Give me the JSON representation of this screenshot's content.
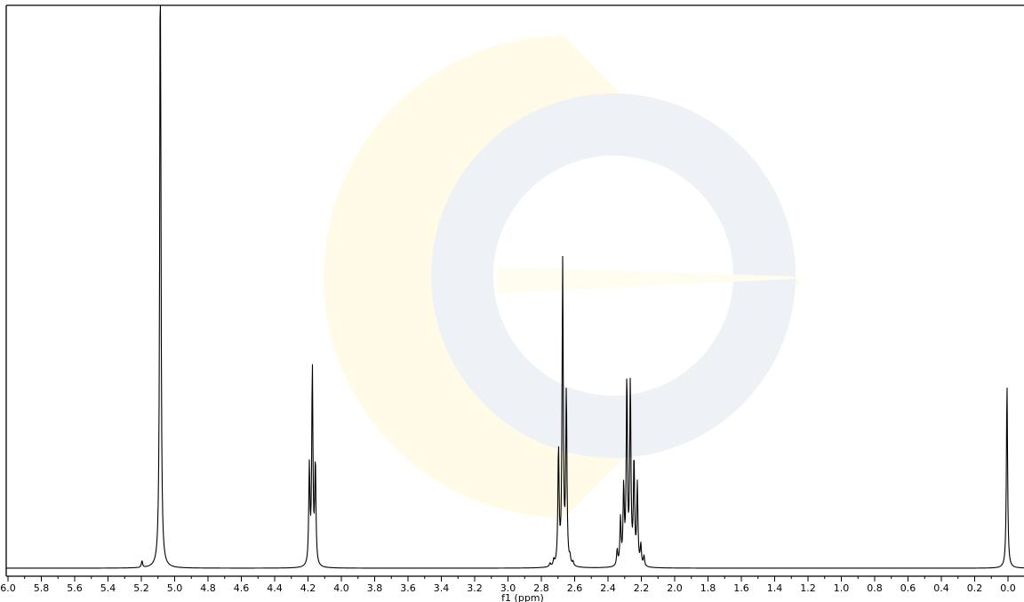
{
  "chart_data": {
    "type": "line",
    "title": "",
    "xlabel": "f1 (ppm)",
    "ylabel": "",
    "xlim": [
      6.1,
      -0.05
    ],
    "x_reversed": true,
    "grid": false,
    "x_ticks": [
      6.0,
      5.8,
      5.6,
      5.4,
      5.2,
      5.0,
      4.8,
      4.6,
      4.4,
      4.2,
      4.0,
      3.8,
      3.6,
      3.4,
      3.2,
      3.0,
      2.8,
      2.6,
      2.4,
      2.2,
      2.0,
      1.8,
      1.6,
      1.4,
      1.2,
      1.0,
      0.8,
      0.6,
      0.4,
      0.2,
      0.0
    ],
    "x_tick_labels": [
      "6.0",
      "5.8",
      "5.6",
      "5.4",
      "5.2",
      "5.0",
      "4.8",
      "4.6",
      "4.4",
      "4.2",
      "4.0",
      "3.8",
      "3.6",
      "3.4",
      "3.2",
      "3.0",
      "2.8",
      "2.6",
      "2.4",
      "2.2",
      "2.0",
      "1.8",
      "1.6",
      "1.4",
      "1.2",
      "1.0",
      "0.8",
      "0.6",
      "0.4",
      "0.2",
      "0.0"
    ],
    "peak_width_ppm": 0.0042,
    "peaks": [
      {
        "x": 5.086,
        "y": 1.2
      },
      {
        "x": 5.196,
        "y": 0.012
      },
      {
        "x": 4.192,
        "y": 0.172
      },
      {
        "x": 4.174,
        "y": 0.352
      },
      {
        "x": 4.156,
        "y": 0.182
      },
      {
        "x": 2.748,
        "y": 0.006
      },
      {
        "x": 2.725,
        "y": 0.01
      },
      {
        "x": 2.697,
        "y": 0.208
      },
      {
        "x": 2.672,
        "y": 0.537
      },
      {
        "x": 2.65,
        "y": 0.305
      },
      {
        "x": 2.628,
        "y": 0.012
      },
      {
        "x": 2.61,
        "y": 0.007
      },
      {
        "x": 2.345,
        "y": 0.028
      },
      {
        "x": 2.325,
        "y": 0.082
      },
      {
        "x": 2.306,
        "y": 0.136
      },
      {
        "x": 2.287,
        "y": 0.332
      },
      {
        "x": 2.266,
        "y": 0.322
      },
      {
        "x": 2.244,
        "y": 0.186
      },
      {
        "x": 2.224,
        "y": 0.142
      },
      {
        "x": 2.203,
        "y": 0.036
      },
      {
        "x": 2.184,
        "y": 0.018
      },
      {
        "x": 0.006,
        "y": 0.328
      }
    ],
    "y_range_visible": [
      0,
      1.0
    ]
  }
}
